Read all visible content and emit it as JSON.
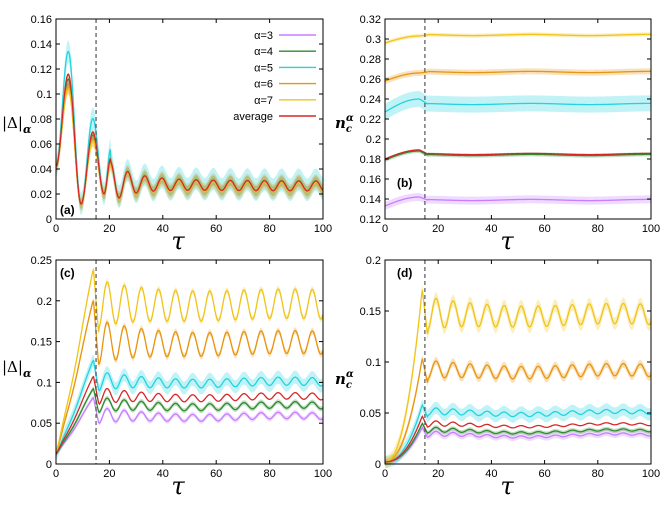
{
  "figure": {
    "legend": [
      {
        "label": "α=3",
        "color": "#c77dff"
      },
      {
        "label": "α=4",
        "color": "#2e8b2e"
      },
      {
        "label": "α=5",
        "color": "#22d3e0"
      },
      {
        "label": "α=6",
        "color": "#e8950f"
      },
      {
        "label": "α=7",
        "color": "#f0c419"
      },
      {
        "label": "average",
        "color": "#d62728"
      }
    ],
    "vline_tau": 15
  },
  "chart_data": [
    {
      "type": "line",
      "panel": "(a)",
      "title": "",
      "xlabel": "τ",
      "ylabel_main": "|Δ|",
      "ylabel_sub": "α",
      "xlim": [
        0,
        100
      ],
      "ylim": [
        0,
        0.16
      ],
      "xticks": [
        "0",
        "20",
        "40",
        "60",
        "80",
        "100"
      ],
      "yticks": [
        "0",
        "0.02",
        "0.04",
        "0.06",
        "0.08",
        "0.1",
        "0.12",
        "0.14",
        "0.16"
      ],
      "series": [
        {
          "name": "α=3",
          "kind": "oscA",
          "A": 0.108,
          "band": 0.004
        },
        {
          "name": "α=4",
          "kind": "oscA",
          "A": 0.112,
          "band": 0.004
        },
        {
          "name": "α=5",
          "kind": "oscA",
          "A": 0.134,
          "band": 0.009
        },
        {
          "name": "α=6",
          "kind": "oscA",
          "A": 0.106,
          "band": 0.006
        },
        {
          "name": "α=7",
          "kind": "oscA",
          "A": 0.104,
          "band": 0.004
        },
        {
          "name": "average",
          "kind": "oscA",
          "A": 0.116,
          "band": 0.0
        }
      ]
    },
    {
      "type": "line",
      "panel": "(b)",
      "title": "",
      "xlabel": "τ",
      "ylabel_main": "n",
      "ylabel_sub": "c",
      "ylabel_sup": "α",
      "xlim": [
        0,
        100
      ],
      "ylim": [
        0.12,
        0.32
      ],
      "xticks": [
        "0",
        "20",
        "40",
        "60",
        "80",
        "100"
      ],
      "yticks": [
        "0.12",
        "0.14",
        "0.16",
        "0.18",
        "0.2",
        "0.22",
        "0.24",
        "0.26",
        "0.28",
        "0.3",
        "0.32"
      ],
      "series": [
        {
          "name": "α=3",
          "kind": "flatB",
          "start": 0.133,
          "peak": 0.142,
          "end": 0.139,
          "band": 0.004
        },
        {
          "name": "α=4",
          "kind": "flatB",
          "start": 0.179,
          "peak": 0.188,
          "end": 0.184,
          "band": 0.002
        },
        {
          "name": "α=5",
          "kind": "flatB",
          "start": 0.227,
          "peak": 0.24,
          "end": 0.235,
          "band": 0.008
        },
        {
          "name": "α=6",
          "kind": "flatB",
          "start": 0.258,
          "peak": 0.266,
          "end": 0.267,
          "band": 0.003
        },
        {
          "name": "α=7",
          "kind": "flatB",
          "start": 0.296,
          "peak": 0.303,
          "end": 0.304,
          "band": 0.002
        },
        {
          "name": "average",
          "kind": "flatB",
          "start": 0.18,
          "peak": 0.189,
          "end": 0.185,
          "band": 0.0
        }
      ]
    },
    {
      "type": "line",
      "panel": "(c)",
      "title": "",
      "xlabel": "τ",
      "ylabel_main": "|Δ|",
      "ylabel_sub": "α",
      "xlim": [
        0,
        100
      ],
      "ylim": [
        0,
        0.25
      ],
      "xticks": [
        "0",
        "20",
        "40",
        "60",
        "80",
        "100"
      ],
      "yticks": [
        "0",
        "0.05",
        "0.1",
        "0.15",
        "0.2",
        "0.25"
      ],
      "series": [
        {
          "name": "α=3",
          "kind": "riseC",
          "peak": 0.082,
          "steady": 0.058,
          "amp": 0.004,
          "band": 0.003
        },
        {
          "name": "α=4",
          "kind": "riseC",
          "peak": 0.093,
          "steady": 0.071,
          "amp": 0.004,
          "band": 0.003
        },
        {
          "name": "α=5",
          "kind": "riseC",
          "peak": 0.128,
          "steady": 0.1,
          "amp": 0.005,
          "band": 0.008
        },
        {
          "name": "α=6",
          "kind": "riseC",
          "peak": 0.202,
          "steady": 0.148,
          "amp": 0.014,
          "band": 0.004
        },
        {
          "name": "α=7",
          "kind": "riseC",
          "peak": 0.24,
          "steady": 0.195,
          "amp": 0.018,
          "band": 0.004
        },
        {
          "name": "average",
          "kind": "riseC",
          "peak": 0.108,
          "steady": 0.082,
          "amp": 0.004,
          "band": 0.0
        }
      ]
    },
    {
      "type": "line",
      "panel": "(d)",
      "title": "",
      "xlabel": "τ",
      "ylabel_main": "n",
      "ylabel_sub": "c",
      "ylabel_sup": "α",
      "xlim": [
        0,
        100
      ],
      "ylim": [
        0,
        0.2
      ],
      "xticks": [
        "0",
        "20",
        "40",
        "60",
        "80",
        "100"
      ],
      "yticks": [
        "0",
        "0.05",
        "0.1",
        "0.15",
        "0.2"
      ],
      "series": [
        {
          "name": "α=3",
          "kind": "riseD",
          "peak": 0.036,
          "steady": 0.028,
          "amp": 0.001,
          "band": 0.003
        },
        {
          "name": "α=4",
          "kind": "riseD",
          "peak": 0.04,
          "steady": 0.032,
          "amp": 0.001,
          "band": 0.002
        },
        {
          "name": "α=5",
          "kind": "riseD",
          "peak": 0.058,
          "steady": 0.05,
          "amp": 0.002,
          "band": 0.006
        },
        {
          "name": "α=6",
          "kind": "riseD",
          "peak": 0.104,
          "steady": 0.091,
          "amp": 0.006,
          "band": 0.004
        },
        {
          "name": "α=7",
          "kind": "riseD",
          "peak": 0.172,
          "steady": 0.146,
          "amp": 0.01,
          "band": 0.006
        },
        {
          "name": "average",
          "kind": "riseD",
          "peak": 0.047,
          "steady": 0.038,
          "amp": 0.001,
          "band": 0.0
        }
      ]
    }
  ]
}
